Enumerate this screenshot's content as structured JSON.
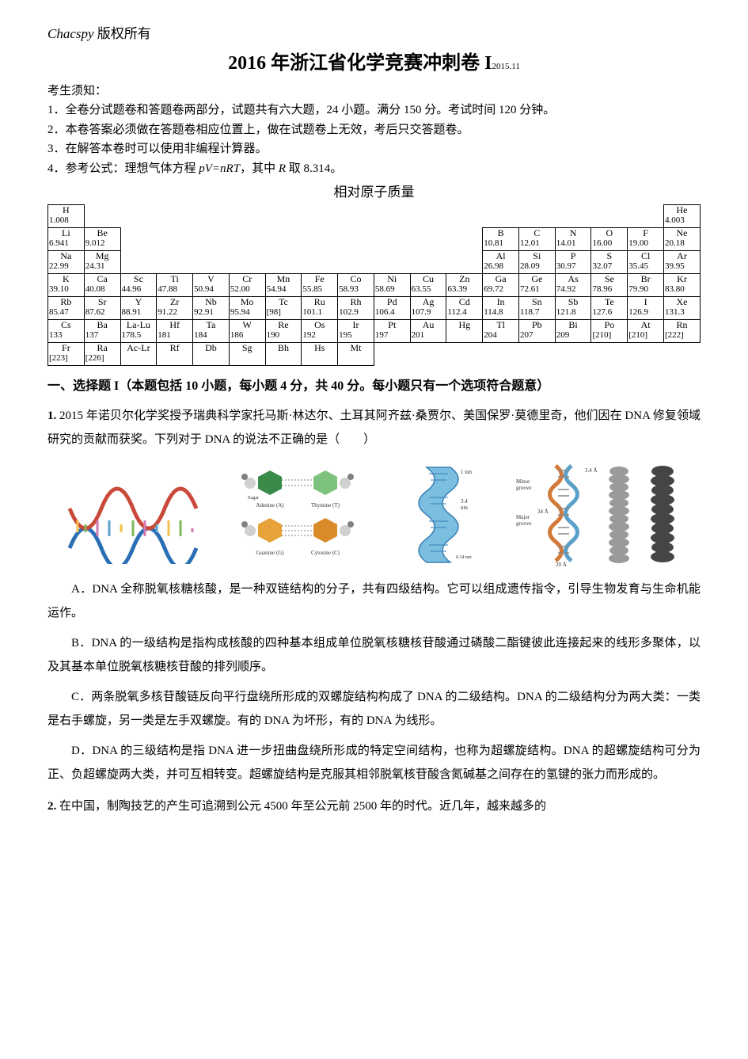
{
  "header": {
    "copyright_en": "Chacspy",
    "copyright_cn": " 版权所有",
    "title_main": "2016 年浙江省化学竞赛冲刺卷 I",
    "title_sub": "2015.11"
  },
  "instructions": {
    "heading": "考生须知：",
    "lines": [
      "1．全卷分试题卷和答题卷两部分，试题共有六大题，24 小题。满分 150 分。考试时间 120 分钟。",
      "2．本卷答案必须做在答题卷相应位置上，做在试题卷上无效，考后只交答题卷。",
      "3．在解答本卷时可以使用非编程计算器。"
    ],
    "line4_prefix": "4．参考公式：理想气体方程 ",
    "line4_formula": "pV=nRT",
    "line4_mid": "，其中 ",
    "line4_R": "R",
    "line4_suffix": " 取 8.314。"
  },
  "periodic_table": {
    "title": "相对原子质量",
    "rows": [
      [
        [
          "H",
          "1.008"
        ],
        null,
        null,
        null,
        null,
        null,
        null,
        null,
        null,
        null,
        null,
        null,
        null,
        null,
        null,
        null,
        null,
        [
          "He",
          "4.003"
        ]
      ],
      [
        [
          "Li",
          "6.941"
        ],
        [
          "Be",
          "9.012"
        ],
        null,
        null,
        null,
        null,
        null,
        null,
        null,
        null,
        null,
        null,
        [
          "B",
          "10.81"
        ],
        [
          "C",
          "12.01"
        ],
        [
          "N",
          "14.01"
        ],
        [
          "O",
          "16.00"
        ],
        [
          "F",
          "19.00"
        ],
        [
          "Ne",
          "20.18"
        ]
      ],
      [
        [
          "Na",
          "22.99"
        ],
        [
          "Mg",
          "24.31"
        ],
        null,
        null,
        null,
        null,
        null,
        null,
        null,
        null,
        null,
        null,
        [
          "Al",
          "26.98"
        ],
        [
          "Si",
          "28.09"
        ],
        [
          "P",
          "30.97"
        ],
        [
          "S",
          "32.07"
        ],
        [
          "Cl",
          "35.45"
        ],
        [
          "Ar",
          "39.95"
        ]
      ],
      [
        [
          "K",
          "39.10"
        ],
        [
          "Ca",
          "40.08"
        ],
        [
          "Sc",
          "44.96"
        ],
        [
          "Ti",
          "47.88"
        ],
        [
          "V",
          "50.94"
        ],
        [
          "Cr",
          "52.00"
        ],
        [
          "Mn",
          "54.94"
        ],
        [
          "Fe",
          "55.85"
        ],
        [
          "Co",
          "58.93"
        ],
        [
          "Ni",
          "58.69"
        ],
        [
          "Cu",
          "63.55"
        ],
        [
          "Zn",
          "63.39"
        ],
        [
          "Ga",
          "69.72"
        ],
        [
          "Ge",
          "72.61"
        ],
        [
          "As",
          "74.92"
        ],
        [
          "Se",
          "78.96"
        ],
        [
          "Br",
          "79.90"
        ],
        [
          "Kr",
          "83.80"
        ]
      ],
      [
        [
          "Rb",
          "85.47"
        ],
        [
          "Sr",
          "87.62"
        ],
        [
          "Y",
          "88.91"
        ],
        [
          "Zr",
          "91.22"
        ],
        [
          "Nb",
          "92.91"
        ],
        [
          "Mo",
          "95.94"
        ],
        [
          "Tc",
          "[98]"
        ],
        [
          "Ru",
          "101.1"
        ],
        [
          "Rh",
          "102.9"
        ],
        [
          "Pd",
          "106.4"
        ],
        [
          "Ag",
          "107.9"
        ],
        [
          "Cd",
          "112.4"
        ],
        [
          "In",
          "114.8"
        ],
        [
          "Sn",
          "118.7"
        ],
        [
          "Sb",
          "121.8"
        ],
        [
          "Te",
          "127.6"
        ],
        [
          "I",
          "126.9"
        ],
        [
          "Xe",
          "131.3"
        ]
      ],
      [
        [
          "Cs",
          "133"
        ],
        [
          "Ba",
          "137"
        ],
        [
          "La-Lu",
          "178.5"
        ],
        [
          "Hf",
          "181"
        ],
        [
          "Ta",
          "184"
        ],
        [
          "W",
          "186"
        ],
        [
          "Re",
          "190"
        ],
        [
          "Os",
          "192"
        ],
        [
          "Ir",
          "195"
        ],
        [
          "Pt",
          "197"
        ],
        [
          "Au",
          "201"
        ],
        [
          "Hg",
          ""
        ],
        [
          "Tl",
          "204"
        ],
        [
          "Pb",
          "207"
        ],
        [
          "Bi",
          "209"
        ],
        [
          "Po",
          "[210]"
        ],
        [
          "At",
          "[210]"
        ],
        [
          "Rn",
          "[222]"
        ]
      ],
      [
        [
          "Fr",
          "[223]"
        ],
        [
          "Ra",
          "[226]"
        ],
        [
          "Ac-Lr",
          ""
        ],
        [
          "Rf",
          ""
        ],
        [
          "Db",
          ""
        ],
        [
          "Sg",
          ""
        ],
        [
          "Bh",
          ""
        ],
        [
          "Hs",
          ""
        ],
        [
          "Mt",
          ""
        ],
        null,
        null,
        null,
        null,
        null,
        null,
        null,
        null,
        null
      ]
    ],
    "border_color": "#000000",
    "font_family": "Times New Roman"
  },
  "section1": {
    "heading": "一、选择题 I（本题包括 10 小题，每小题 4 分，共 40 分。每小题只有一个选项符合题意）"
  },
  "q1": {
    "number": "1.",
    "stem": " 2015 年诺贝尔化学奖授予瑞典科学家托马斯·林达尔、土耳其阿齐兹·桑贾尔、美国保罗·莫德里奇，他们因在 DNA 修复领域研究的贡献而获奖。下列对于 DNA 的说法不正确的是（　　）",
    "figure": {
      "helix1_colors": {
        "strand1": "#2a6fb5",
        "strand2": "#c94a3b",
        "base_colors": [
          "#f2c14e",
          "#7fb858",
          "#d37ab5",
          "#5aa0c8"
        ]
      },
      "bases_colors": {
        "adenine": "#3a8a4a",
        "thymine": "#7cc27c",
        "guanine": "#e8a23a",
        "cytosine": "#d98b2a",
        "sugar": "#d0d0d0",
        "phosphate": "#808080"
      },
      "bases_labels": {
        "a": "Adenine (A)",
        "t": "Thymine (T)",
        "g": "Guanine (G)",
        "c": "Cytosine (C)",
        "sugar": "Sugar",
        "phosphate": "Phosphate"
      },
      "helix2_colors": {
        "strand": "#3a7fb5",
        "fill": "#7abfe0",
        "dims": [
          "1 nm",
          "3.4 nm",
          "0.34 nm"
        ]
      },
      "triple_labels": {
        "major": "Major groove",
        "minor": "Minor groove",
        "dims": [
          "20 Å",
          "34 Å",
          "3.4 Å"
        ]
      },
      "triple_colors": {
        "a": "#5aa0c8",
        "b": "#808080",
        "c": "#404040"
      }
    },
    "options": {
      "A": "A．DNA 全称脱氧核糖核酸，是一种双链结构的分子，共有四级结构。它可以组成遗传指令，引导生物发育与生命机能运作。",
      "B": "B．DNA 的一级结构是指构成核酸的四种基本组成单位脱氧核糖核苷酸通过磷酸二酯键彼此连接起来的线形多聚体，以及其基本单位脱氧核糖核苷酸的排列顺序。",
      "C": "C．两条脱氧多核苷酸链反向平行盘绕所形成的双螺旋结构构成了 DNA 的二级结构。DNA 的二级结构分为两大类：一类是右手螺旋，另一类是左手双螺旋。有的 DNA 为坏形，有的 DNA 为线形。",
      "D": "D．DNA 的三级结构是指 DNA 进一步扭曲盘绕所形成的特定空间结构，也称为超螺旋结构。DNA 的超螺旋结构可分为正、负超螺旋两大类，并可互相转变。超螺旋结构是克服其相邻脱氧核苷酸含氮碱基之间存在的氢键的张力而形成的。"
    }
  },
  "q2": {
    "number": "2.",
    "stem": " 在中国，制陶技艺的产生可追溯到公元 4500 年至公元前 2500 年的时代。近几年，越来越多的"
  }
}
